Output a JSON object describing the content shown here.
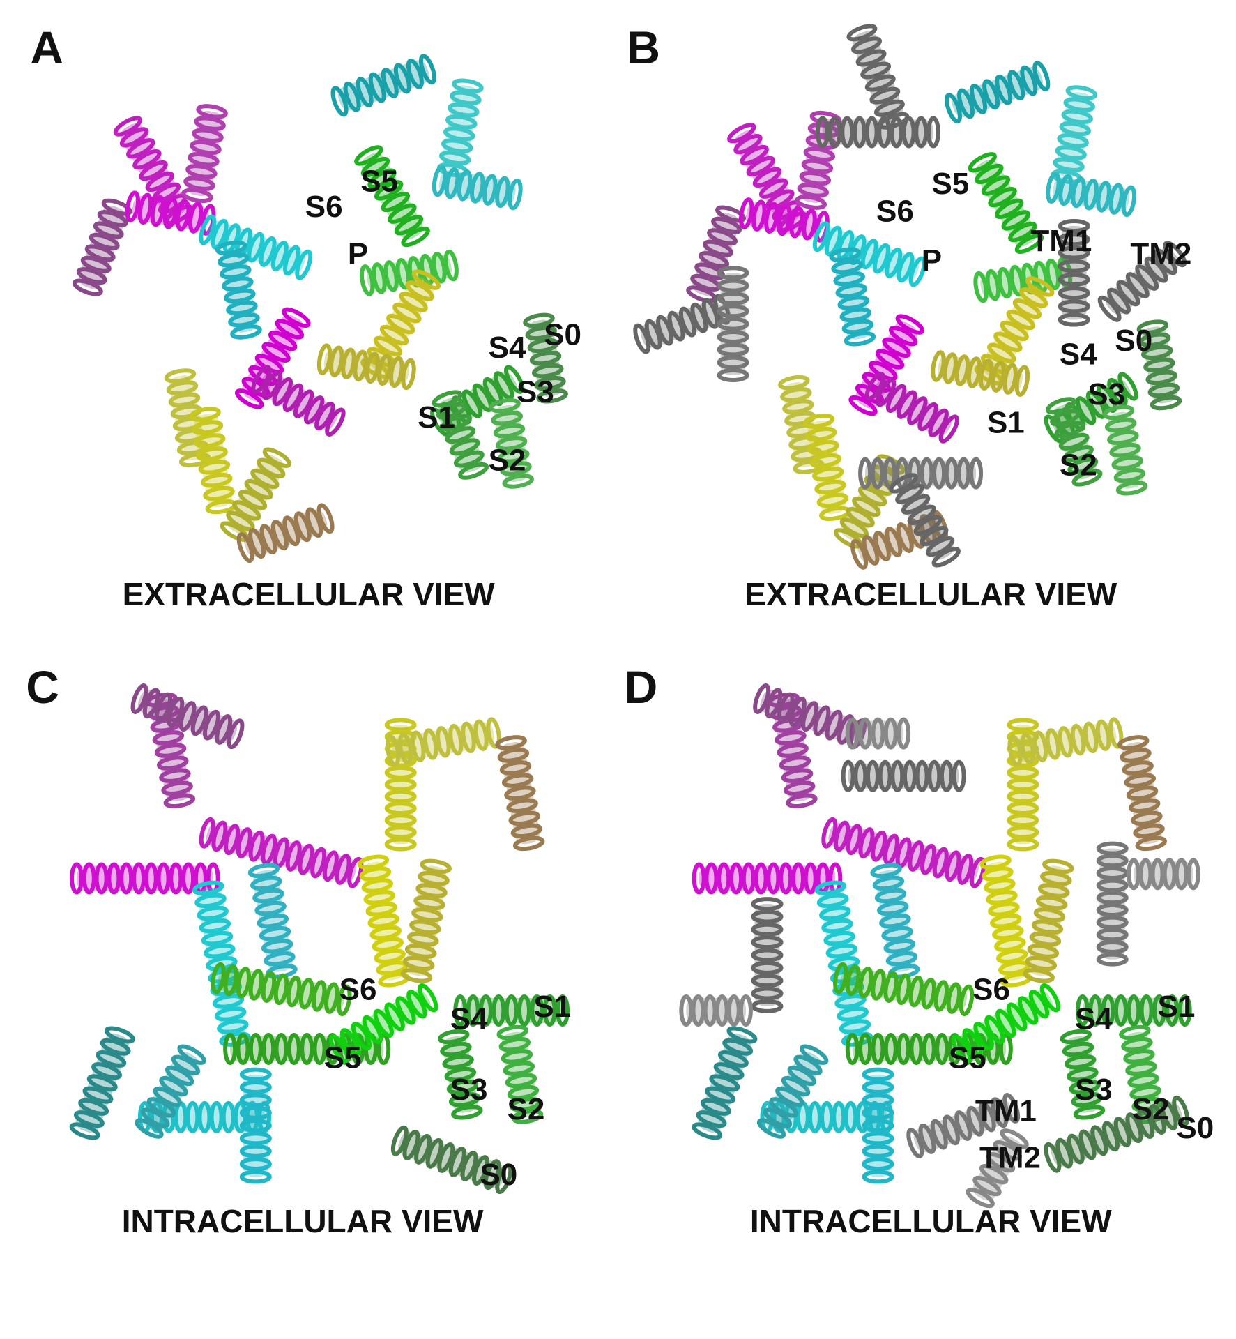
{
  "panels": [
    {
      "letter": "A",
      "caption": "EXTRACELLULAR VIEW",
      "labels": [
        "S5",
        "S6",
        "P",
        "S4",
        "S0",
        "S3",
        "S1",
        "S2"
      ]
    },
    {
      "letter": "B",
      "caption": "EXTRACELLULAR VIEW",
      "labels": [
        "S5",
        "S6",
        "P",
        "TM1",
        "TM2",
        "S0",
        "S4",
        "S3",
        "S1",
        "S2"
      ]
    },
    {
      "letter": "C",
      "caption": "INTRACELLULAR VIEW",
      "labels": [
        "S6",
        "S4",
        "S1",
        "S5",
        "S3",
        "S2",
        "S0"
      ]
    },
    {
      "letter": "D",
      "caption": "INTRACELLULAR VIEW",
      "labels": [
        "S6",
        "S4",
        "S1",
        "S5",
        "S3",
        "TM1",
        "S2",
        "S0",
        "TM2"
      ]
    }
  ]
}
